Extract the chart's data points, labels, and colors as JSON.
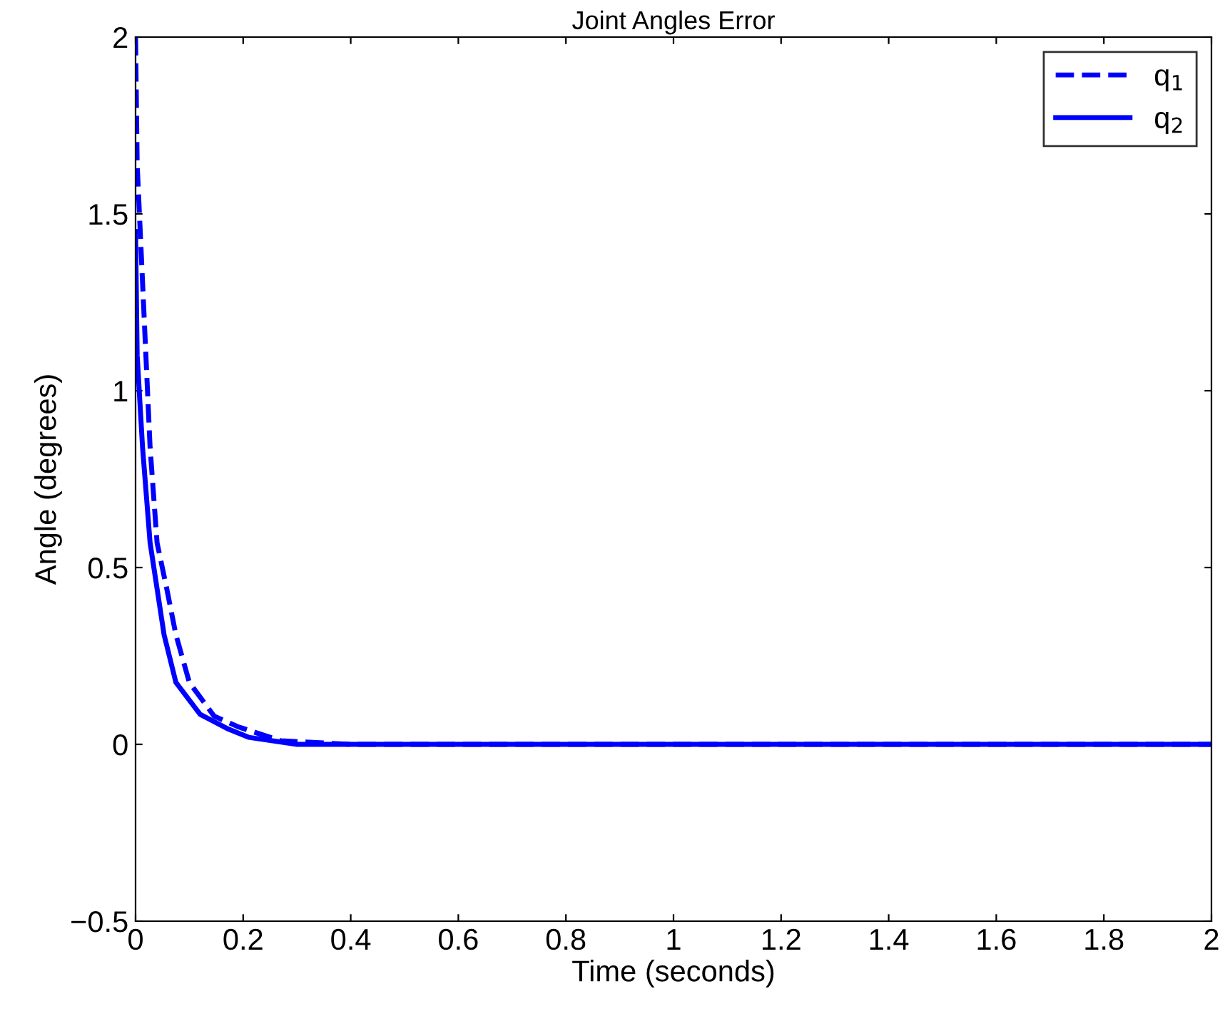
{
  "chart_data": {
    "type": "line",
    "title": "Joint Angles Error",
    "xlabel": "Time (seconds)",
    "ylabel": "Angle (degrees)",
    "xlim": [
      0,
      2
    ],
    "ylim": [
      -0.5,
      2
    ],
    "xticks": [
      0,
      0.2,
      0.4,
      0.6,
      0.8,
      1,
      1.2,
      1.4,
      1.6,
      1.8,
      2
    ],
    "yticks": [
      {
        "value": -0.5,
        "label": "−0.5"
      },
      0,
      0.5,
      1,
      1.5,
      2
    ],
    "grid": false,
    "legend": "top right",
    "series": [
      {
        "name": "q$_{1}$",
        "color": "#0000ff",
        "line_style": "dashed",
        "x": [
          0,
          0.003,
          0.015,
          0.027,
          0.04,
          0.058,
          0.075,
          0.1,
          0.146,
          0.19,
          0.27,
          0.4,
          1,
          2
        ],
        "values": [
          2.0,
          1.64,
          1.24,
          0.84,
          0.57,
          0.44,
          0.31,
          0.175,
          0.08,
          0.05,
          0.01,
          0,
          0,
          0
        ]
      },
      {
        "name": "q$_{2}$",
        "color": "#0000ff",
        "line_style": "solid",
        "x": [
          0,
          0.003,
          0.013,
          0.027,
          0.053,
          0.075,
          0.12,
          0.17,
          0.21,
          0.3,
          1,
          2
        ],
        "values": [
          1.45,
          1.1,
          0.84,
          0.57,
          0.31,
          0.175,
          0.085,
          0.045,
          0.02,
          0,
          0,
          0
        ]
      }
    ]
  }
}
